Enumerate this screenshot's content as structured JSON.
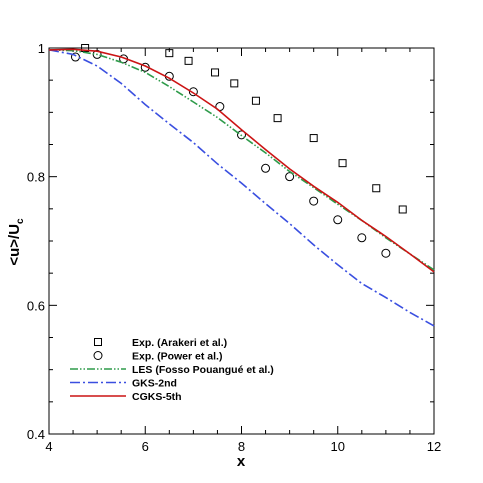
{
  "chart_data": {
    "type": "line",
    "xlabel": "x",
    "ylabel_main": "<u>/U",
    "ylabel_sub": "c",
    "xlim": [
      4,
      12
    ],
    "ylim": [
      0.4,
      1.0
    ],
    "x_ticks": [
      4,
      6,
      8,
      10,
      12
    ],
    "x_tick_labels": [
      "4",
      "6",
      "8",
      "10",
      "12"
    ],
    "y_ticks": [
      0.4,
      0.6,
      0.8,
      1.0
    ],
    "y_tick_labels": [
      "0.4",
      "0.6",
      "0.8",
      "1"
    ],
    "grid": false,
    "legend_position": "bottom-left",
    "series": [
      {
        "name": "Exp. (Arakeri et al.)",
        "kind": "marker",
        "marker": "square",
        "color": "#000000",
        "x": [
          4.75,
          6.5,
          6.9,
          7.45,
          7.85,
          8.3,
          8.75,
          9.5,
          10.1,
          10.8,
          11.35
        ],
        "y": [
          1.0,
          0.992,
          0.98,
          0.962,
          0.945,
          0.918,
          0.891,
          0.86,
          0.821,
          0.782,
          0.749
        ]
      },
      {
        "name": "Exp. (Power et al.)",
        "kind": "marker",
        "marker": "circle",
        "color": "#000000",
        "x": [
          4.55,
          5.0,
          5.55,
          6.0,
          6.5,
          7.0,
          7.55,
          8.0,
          8.5,
          9.0,
          9.5,
          10.0,
          10.5,
          11.0
        ],
        "y": [
          0.986,
          0.99,
          0.983,
          0.97,
          0.956,
          0.932,
          0.909,
          0.865,
          0.813,
          0.8,
          0.762,
          0.733,
          0.705,
          0.681
        ]
      },
      {
        "name": "LES (Fosso Pouangué et al.)",
        "kind": "line",
        "dash": "8,2,1.5,2,1.5,2",
        "color": "#2e9b4a",
        "x": [
          4.0,
          4.5,
          5.0,
          5.5,
          6.0,
          6.5,
          7.0,
          7.5,
          8.0,
          8.5,
          9.0,
          9.5,
          10.0,
          10.5,
          11.0,
          11.5,
          12.0
        ],
        "y": [
          0.997,
          0.996,
          0.99,
          0.978,
          0.962,
          0.94,
          0.916,
          0.892,
          0.864,
          0.837,
          0.808,
          0.783,
          0.757,
          0.732,
          0.705,
          0.68,
          0.655
        ]
      },
      {
        "name": "GKS-2nd",
        "kind": "line",
        "dash": "10,3,2,3",
        "color": "#3a4fe0",
        "x": [
          4.0,
          4.5,
          5.0,
          5.5,
          6.0,
          6.5,
          7.0,
          7.5,
          8.0,
          8.5,
          9.0,
          9.5,
          10.0,
          10.5,
          11.0,
          11.5,
          12.0
        ],
        "y": [
          0.997,
          0.99,
          0.972,
          0.945,
          0.912,
          0.882,
          0.853,
          0.82,
          0.79,
          0.758,
          0.727,
          0.694,
          0.663,
          0.634,
          0.612,
          0.589,
          0.568
        ]
      },
      {
        "name": "CGKS-5th",
        "kind": "line",
        "dash": "",
        "color": "#cc1414",
        "x": [
          4.0,
          4.5,
          5.0,
          5.5,
          6.0,
          6.5,
          7.0,
          7.5,
          8.0,
          8.5,
          9.0,
          9.5,
          10.0,
          10.5,
          11.0,
          11.5,
          12.0
        ],
        "y": [
          0.997,
          0.998,
          0.995,
          0.986,
          0.972,
          0.953,
          0.93,
          0.905,
          0.873,
          0.842,
          0.812,
          0.785,
          0.76,
          0.732,
          0.707,
          0.68,
          0.652
        ]
      }
    ]
  }
}
